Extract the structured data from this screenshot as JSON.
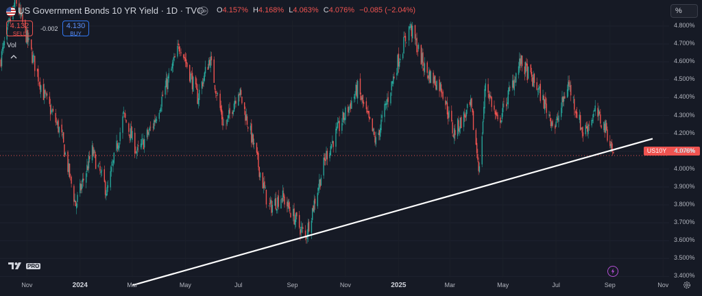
{
  "header": {
    "title": "US Government Bonds 10 YR Yield · 1D · TVC",
    "ohlc": [
      {
        "key": "O",
        "value": "4.157%"
      },
      {
        "key": "H",
        "value": "4.168%"
      },
      {
        "key": "L",
        "value": "4.063%"
      },
      {
        "key": "C",
        "value": "4.076%"
      }
    ],
    "change": "−0.085 (−2.04%)",
    "scale_mode": "%"
  },
  "trade": {
    "sell_price": "4.132",
    "sell_label": "SELL",
    "buy_price": "4.130",
    "buy_label": "BUY",
    "spread": "-0.002"
  },
  "volume_label": "Vol",
  "price_badge": {
    "symbol": "US10Y",
    "value": "4.076%"
  },
  "logo": {
    "pro": "PRO"
  },
  "colors": {
    "up": "#26a69a",
    "down": "#ef5350",
    "background": "#161a25",
    "trendline": "#ffffff"
  },
  "chart_data": {
    "type": "candlestick",
    "ylabel": "",
    "ylim": [
      3.35,
      4.85
    ],
    "y_ticks": [
      "3.400%",
      "3.500%",
      "3.600%",
      "3.700%",
      "3.800%",
      "3.900%",
      "4.000%",
      "4.100%",
      "4.200%",
      "4.300%",
      "4.400%",
      "4.500%",
      "4.600%",
      "4.700%",
      "4.800%"
    ],
    "x_ticks": [
      "Nov",
      "2024",
      "Mar",
      "May",
      "Jul",
      "Sep",
      "Nov",
      "2025",
      "Mar",
      "May",
      "Jul",
      "Sep",
      "Nov"
    ],
    "x_ticks_bold": [
      "2024",
      "2025"
    ],
    "x_range": [
      "2023-10-01",
      "2025-11-15"
    ],
    "x_tick_dates": [
      "2023-11-01",
      "2024-01-01",
      "2024-03-01",
      "2024-05-01",
      "2024-07-01",
      "2024-09-01",
      "2024-11-01",
      "2025-01-01",
      "2025-03-01",
      "2025-05-01",
      "2025-07-01",
      "2025-09-01",
      "2025-11-01"
    ],
    "current_price": 4.076,
    "trendline": {
      "from": {
        "date": "2024-03-01",
        "value": 3.35
      },
      "to": {
        "date": "2025-10-20",
        "value": 4.17
      }
    },
    "close_path": [
      {
        "date": "2023-10-01",
        "value": 4.6
      },
      {
        "date": "2023-10-19",
        "value": 4.95
      },
      {
        "date": "2023-11-01",
        "value": 4.73
      },
      {
        "date": "2023-11-20",
        "value": 4.42
      },
      {
        "date": "2023-12-10",
        "value": 4.2
      },
      {
        "date": "2023-12-27",
        "value": 3.8
      },
      {
        "date": "2024-01-15",
        "value": 4.1
      },
      {
        "date": "2024-02-01",
        "value": 3.87
      },
      {
        "date": "2024-02-20",
        "value": 4.3
      },
      {
        "date": "2024-03-07",
        "value": 4.09
      },
      {
        "date": "2024-03-25",
        "value": 4.25
      },
      {
        "date": "2024-04-25",
        "value": 4.7
      },
      {
        "date": "2024-05-15",
        "value": 4.4
      },
      {
        "date": "2024-05-29",
        "value": 4.62
      },
      {
        "date": "2024-06-15",
        "value": 4.22
      },
      {
        "date": "2024-07-01",
        "value": 4.45
      },
      {
        "date": "2024-07-15",
        "value": 4.2
      },
      {
        "date": "2024-08-05",
        "value": 3.78
      },
      {
        "date": "2024-08-20",
        "value": 3.85
      },
      {
        "date": "2024-09-16",
        "value": 3.62
      },
      {
        "date": "2024-10-10",
        "value": 4.08
      },
      {
        "date": "2024-10-31",
        "value": 4.3
      },
      {
        "date": "2024-11-15",
        "value": 4.45
      },
      {
        "date": "2024-12-06",
        "value": 4.15
      },
      {
        "date": "2024-12-31",
        "value": 4.6
      },
      {
        "date": "2025-01-14",
        "value": 4.8
      },
      {
        "date": "2025-02-01",
        "value": 4.55
      },
      {
        "date": "2025-02-20",
        "value": 4.45
      },
      {
        "date": "2025-03-05",
        "value": 4.2
      },
      {
        "date": "2025-03-25",
        "value": 4.35
      },
      {
        "date": "2025-04-04",
        "value": 3.99
      },
      {
        "date": "2025-04-11",
        "value": 4.49
      },
      {
        "date": "2025-04-25",
        "value": 4.25
      },
      {
        "date": "2025-05-21",
        "value": 4.6
      },
      {
        "date": "2025-06-10",
        "value": 4.45
      },
      {
        "date": "2025-06-30",
        "value": 4.23
      },
      {
        "date": "2025-07-15",
        "value": 4.48
      },
      {
        "date": "2025-08-01",
        "value": 4.2
      },
      {
        "date": "2025-08-15",
        "value": 4.32
      },
      {
        "date": "2025-08-28",
        "value": 4.22
      },
      {
        "date": "2025-09-05",
        "value": 4.076
      }
    ]
  }
}
